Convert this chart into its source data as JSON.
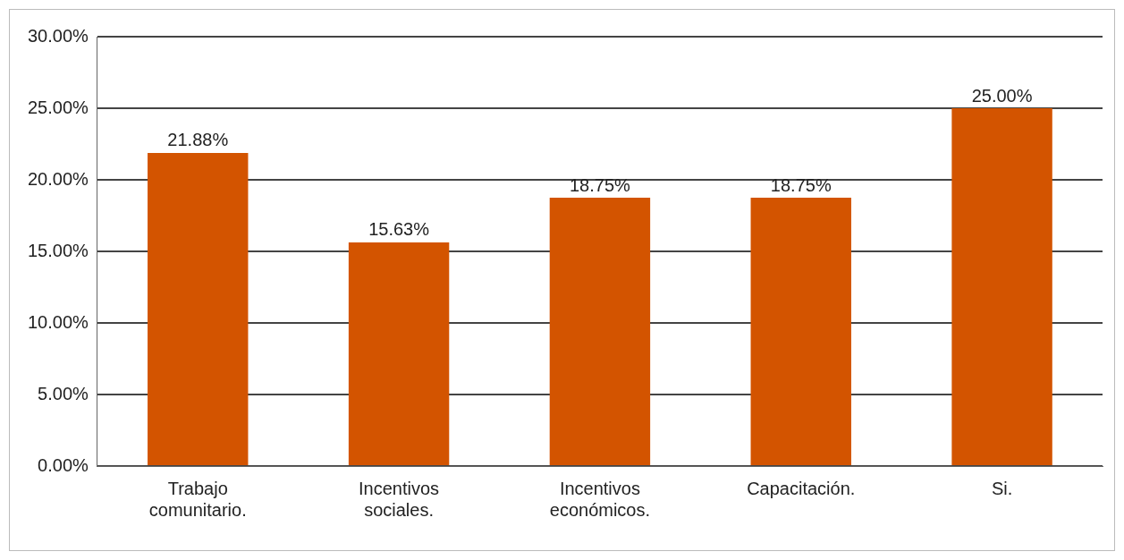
{
  "chart_data": {
    "type": "bar",
    "categories": [
      "Trabajo comunitario.",
      "Incentivos sociales.",
      "Incentivos económicos.",
      "Capacitación.",
      "Si."
    ],
    "values": [
      21.88,
      15.63,
      18.75,
      18.75,
      25
    ],
    "color": "#d35400",
    "ylim": [
      0,
      30
    ],
    "yticks": [
      {
        "value": 0,
        "label": "0.00%"
      },
      {
        "value": 5,
        "label": "5.00%"
      },
      {
        "value": 10,
        "label": "10.00%"
      },
      {
        "value": 15,
        "label": "15.00%"
      },
      {
        "value": 20,
        "label": "20.00%"
      },
      {
        "value": 25,
        "label": "25.00%"
      },
      {
        "value": 30,
        "label": "30.00%"
      }
    ],
    "value_labels": [
      "21.88%",
      "15.63%",
      "18.75%",
      "18.75%",
      "25.00%"
    ],
    "grid": "y",
    "legend": false
  }
}
